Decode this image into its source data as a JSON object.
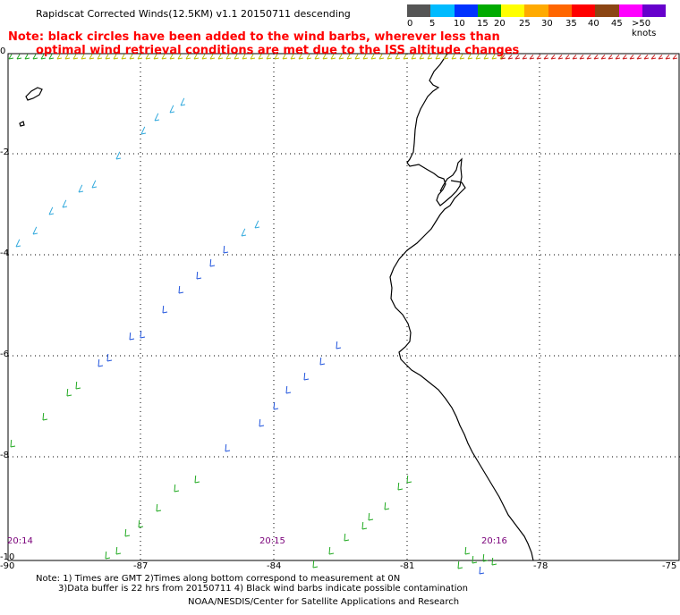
{
  "title": "Rapidscat Corrected Winds(12.5KM) v1.1 20150711 descending",
  "note_line1": "Note: black circles have been added to the wind barbs, wherever less than",
  "note_line2": "optimal wind retrieval conditions are met due to the ISS altitude changes",
  "legend": {
    "colors": [
      "#555555",
      "#00bbff",
      "#0033ff",
      "#00aa00",
      "#ffff00",
      "#ffaa00",
      "#ff6600",
      "#ff0000",
      "#8b4513",
      "#ff00ff",
      "#6600cc"
    ],
    "labels": [
      "0",
      "5",
      "10",
      "15",
      "20",
      "25",
      "30",
      "35",
      "40",
      "45",
      ">50 knots"
    ]
  },
  "axes": {
    "x_ticks": [
      "-90",
      "-87",
      "-84",
      "-81",
      "-78",
      "-75"
    ],
    "y_ticks": [
      "0",
      "-2",
      "-4",
      "-6",
      "-8",
      "-10"
    ]
  },
  "times": [
    "20:14",
    "20:15",
    "20:16"
  ],
  "footer": {
    "line1": "Note: 1) Times are GMT 2)Times along bottom correspond to measurement at 0N",
    "line2": "3)Data buffer is 22 hrs from 20150711 4) Black wind barbs indicate possible contamination",
    "credit": "NOAA/NESDIS/Center for Satellite Applications and Research"
  },
  "colors": {
    "note": "#ff0000",
    "time_label": "#7a007a",
    "barb_cyan": "#33aadd",
    "barb_blue": "#2255dd",
    "barb_green": "#22aa22",
    "barb_yellow": "#bbbb00",
    "barb_red": "#cc2222",
    "coast": "#000000"
  }
}
